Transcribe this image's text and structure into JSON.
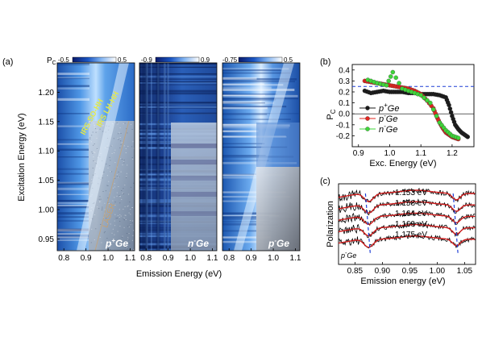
{
  "chart_data": [
    {
      "panel": "(a)",
      "type": "heatmap",
      "xlabel": "Emission Energy (eV)",
      "ylabel": "Excitation Energy (eV)",
      "xlim": [
        0.77,
        1.12
      ],
      "ylim": [
        0.93,
        1.25
      ],
      "colorbar_label": "P",
      "colorbar_sub": "C",
      "x_ticks": [
        "0.8",
        "0.9",
        "1.0",
        "1.1"
      ],
      "y_ticks": [
        "0.95",
        "1.00",
        "1.05",
        "1.10",
        "1.15",
        "1.20"
      ],
      "panels": [
        {
          "name": "p+Ge",
          "label_main": "p",
          "label_sup": "+",
          "label_tail": "Ge",
          "cbar_min": "-0.5",
          "cbar_max": "0.5",
          "annotations": [
            "IRS SO-HH",
            "IRS LH-HH",
            "LASER"
          ]
        },
        {
          "name": "n-Ge",
          "label_main": "n",
          "label_sup": "-",
          "label_tail": "Ge",
          "cbar_min": "-0.9",
          "cbar_max": "0.9"
        },
        {
          "name": "p-Ge",
          "label_main": "p",
          "label_sup": "-",
          "label_tail": "Ge",
          "cbar_min": "-0.75",
          "cbar_max": "0.5"
        }
      ]
    },
    {
      "panel": "(b)",
      "type": "scatter",
      "xlabel": "Exc. Energy (eV)",
      "ylabel": "P",
      "ylabel_sub": "C",
      "xlim": [
        0.88,
        1.27
      ],
      "ylim": [
        -0.3,
        0.45
      ],
      "x_ticks": [
        "0.9",
        "1.0",
        "1.1",
        "1.2"
      ],
      "y_ticks": [
        "0.4",
        "0.3",
        "0.2",
        "0.1",
        "0.0",
        "-0.1",
        "-0.2"
      ],
      "reference_line": {
        "y": 0.25,
        "style": "dashed",
        "color": "#1f3fd6"
      },
      "series": [
        {
          "name": "p+Ge",
          "name_main": "p",
          "name_sup": "+",
          "name_tail": "Ge",
          "color": "#1a1a1a",
          "x": [
            0.92,
            0.94,
            0.96,
            0.98,
            1.0,
            1.02,
            1.04,
            1.06,
            1.08,
            1.1,
            1.12,
            1.14,
            1.16,
            1.18,
            1.19,
            1.2,
            1.21,
            1.22,
            1.23,
            1.24,
            1.25
          ],
          "y": [
            0.21,
            0.19,
            0.2,
            0.21,
            0.2,
            0.2,
            0.2,
            0.19,
            0.19,
            0.18,
            0.18,
            0.18,
            0.17,
            0.15,
            0.08,
            -0.02,
            -0.1,
            -0.14,
            -0.17,
            -0.19,
            -0.21
          ]
        },
        {
          "name": "p-Ge",
          "name_main": "p",
          "name_sup": "-",
          "name_tail": "Ge",
          "color": "#e0251f",
          "x": [
            0.92,
            0.94,
            0.96,
            0.98,
            1.0,
            1.02,
            1.04,
            1.06,
            1.08,
            1.1,
            1.12,
            1.14,
            1.15,
            1.16,
            1.17,
            1.18,
            1.19,
            1.2,
            1.21,
            1.22
          ],
          "y": [
            0.3,
            0.29,
            0.28,
            0.27,
            0.26,
            0.25,
            0.24,
            0.23,
            0.21,
            0.18,
            0.12,
            0.05,
            -0.02,
            -0.08,
            -0.13,
            -0.17,
            -0.19,
            -0.21,
            -0.22,
            -0.23
          ]
        },
        {
          "name": "n-Ge",
          "name_main": "n",
          "name_sup": "-",
          "name_tail": "Ge",
          "color": "#3fd43a",
          "x": [
            0.93,
            0.96,
            0.99,
            1.01,
            1.04,
            1.07,
            1.1,
            1.13,
            1.16,
            1.18,
            1.2,
            1.22
          ],
          "y": [
            0.31,
            0.28,
            0.26,
            0.38,
            0.23,
            0.2,
            0.17,
            0.1,
            -0.08,
            -0.15,
            -0.2,
            -0.22
          ]
        }
      ]
    },
    {
      "panel": "(c)",
      "type": "line",
      "xlabel": "Emission energy (eV)",
      "ylabel": "Polarization",
      "xlim": [
        0.82,
        1.07
      ],
      "x_ticks": [
        "0.85",
        "0.90",
        "0.95",
        "1.00",
        "1.05"
      ],
      "sample_label": "p-Ge",
      "sample_label_main": "p",
      "sample_label_sup": "-",
      "sample_label_tail": "Ge",
      "curve_labels": [
        "1.153 eV",
        "1.158 eV",
        "1.164 eV",
        "1.169 eV",
        "1.175 eV"
      ],
      "dip_energies": [
        0.875,
        1.035
      ],
      "fit_color": "#d01c1c",
      "data_color": "#000000",
      "guide_color": "#1f3fd6"
    }
  ]
}
